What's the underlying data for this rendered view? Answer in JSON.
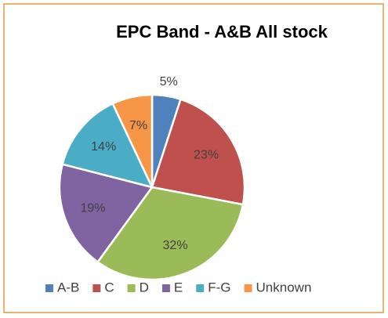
{
  "chart_data": {
    "type": "pie",
    "title": "EPC Band - A&B All stock",
    "categories": [
      "A-B",
      "C",
      "D",
      "E",
      "F-G",
      "Unknown"
    ],
    "values": [
      5,
      23,
      32,
      19,
      14,
      7
    ],
    "value_labels": [
      "5%",
      "23%",
      "32%",
      "19%",
      "14%",
      "7%"
    ],
    "colors": [
      "#4f81bd",
      "#c0504d",
      "#9bbb59",
      "#8064a2",
      "#4bacc6",
      "#f79646"
    ],
    "legend": "bottom"
  }
}
